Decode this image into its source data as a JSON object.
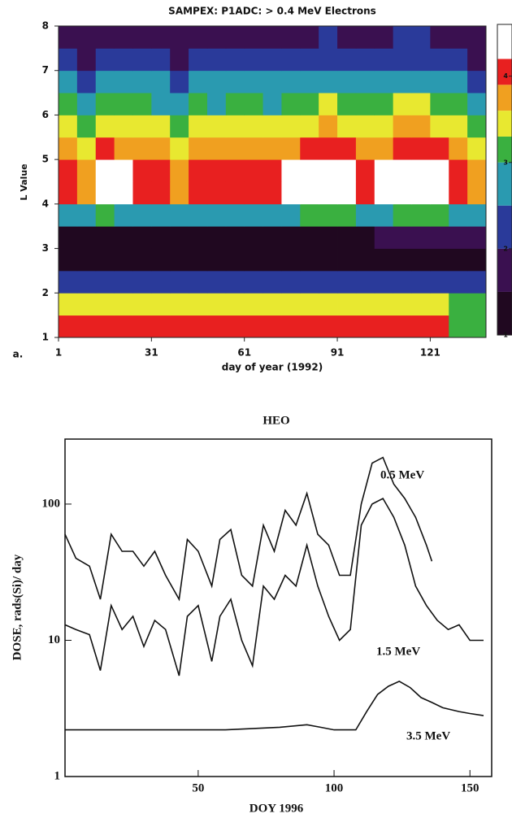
{
  "chart_data": [
    {
      "type": "heatmap",
      "title": "SAMPEX: P1ADC: > 0.4 MeV Electrons",
      "panel_label": "a.",
      "x_label": "day of year (1992)",
      "y_label": "L Value",
      "xlim": [
        1,
        139
      ],
      "ylim": [
        1,
        8
      ],
      "xticks": [
        1,
        31,
        61,
        91,
        121
      ],
      "yticks": [
        1,
        2,
        3,
        4,
        5,
        6,
        7,
        8
      ],
      "x_bins": [
        1,
        7,
        13,
        19,
        25,
        31,
        37,
        43,
        49,
        55,
        61,
        67,
        73,
        79,
        85,
        91,
        97,
        103,
        109,
        115,
        121,
        127,
        133,
        139
      ],
      "y_bins": [
        1,
        1.5,
        2,
        2.5,
        3,
        3.5,
        4,
        4.5,
        5,
        5.5,
        6,
        6.5,
        7,
        7.5,
        8
      ],
      "zlim": [
        1,
        4.6
      ],
      "zticks": [
        1,
        2,
        3,
        4
      ],
      "colorscale": [
        [
          1,
          "#200820"
        ],
        [
          1.5,
          "#3a1050"
        ],
        [
          2,
          "#2a3a9a"
        ],
        [
          2.5,
          "#2a9ab0"
        ],
        [
          3,
          "#3ab040"
        ],
        [
          3.3,
          "#e8e830"
        ],
        [
          3.6,
          "#f0a020"
        ],
        [
          3.9,
          "#e82020"
        ],
        [
          4.2,
          "#ffffff"
        ]
      ],
      "z": [
        [
          3.9,
          3.9,
          3.9,
          3.9,
          3.9,
          3.9,
          3.9,
          3.9,
          3.9,
          3.9,
          3.9,
          3.9,
          3.9,
          3.9,
          3.9,
          3.9,
          3.9,
          3.9,
          3.9,
          3.9,
          3.9,
          3.1,
          3.0
        ],
        [
          3.4,
          3.4,
          3.4,
          3.4,
          3.4,
          3.4,
          3.4,
          3.4,
          3.4,
          3.4,
          3.4,
          3.4,
          3.4,
          3.4,
          3.4,
          3.4,
          3.4,
          3.4,
          3.4,
          3.4,
          3.4,
          3.0,
          3.0
        ],
        [
          2.3,
          2.3,
          2.3,
          2.3,
          2.3,
          2.3,
          2.3,
          2.3,
          2.3,
          2.3,
          2.3,
          2.3,
          2.3,
          2.3,
          2.3,
          2.3,
          2.3,
          2.3,
          2.3,
          2.3,
          2.3,
          2.3,
          2.3
        ],
        [
          1.2,
          1.2,
          1.2,
          1.2,
          1.2,
          1.2,
          1.2,
          1.2,
          1.2,
          1.2,
          1.2,
          1.2,
          1.2,
          1.2,
          1.2,
          1.2,
          1.2,
          1.2,
          1.2,
          1.2,
          1.2,
          1.2,
          1.2
        ],
        [
          1.4,
          1.4,
          1.4,
          1.4,
          1.4,
          1.4,
          1.4,
          1.4,
          1.4,
          1.4,
          1.4,
          1.4,
          1.4,
          1.4,
          1.4,
          1.4,
          1.4,
          1.8,
          1.9,
          1.9,
          1.8,
          1.6,
          1.5
        ],
        [
          2.8,
          2.8,
          3.0,
          2.9,
          2.8,
          2.8,
          2.8,
          2.9,
          2.8,
          2.8,
          2.9,
          2.8,
          2.9,
          3.0,
          3.0,
          3.0,
          2.8,
          2.9,
          3.0,
          3.0,
          3.0,
          2.8,
          2.8
        ],
        [
          4.0,
          3.8,
          4.3,
          4.2,
          4.0,
          3.9,
          3.8,
          4.1,
          3.9,
          4.0,
          4.1,
          3.9,
          4.2,
          4.3,
          4.4,
          4.3,
          4.0,
          4.2,
          4.4,
          4.4,
          4.3,
          4.0,
          3.8
        ],
        [
          4.0,
          3.8,
          4.3,
          4.2,
          4.0,
          3.9,
          3.8,
          4.1,
          3.9,
          4.0,
          4.1,
          3.9,
          4.2,
          4.3,
          4.4,
          4.3,
          4.0,
          4.2,
          4.4,
          4.4,
          4.3,
          4.0,
          3.8
        ],
        [
          3.7,
          3.5,
          3.9,
          3.8,
          3.7,
          3.6,
          3.5,
          3.8,
          3.6,
          3.7,
          3.8,
          3.6,
          3.8,
          3.9,
          4.0,
          3.9,
          3.7,
          3.8,
          4.0,
          4.0,
          3.9,
          3.7,
          3.5
        ],
        [
          3.3,
          3.2,
          3.5,
          3.5,
          3.3,
          3.3,
          3.2,
          3.4,
          3.3,
          3.3,
          3.4,
          3.3,
          3.5,
          3.5,
          3.6,
          3.5,
          3.3,
          3.5,
          3.6,
          3.6,
          3.5,
          3.3,
          3.2
        ],
        [
          3.0,
          2.8,
          3.2,
          3.1,
          3.0,
          2.9,
          2.8,
          3.1,
          2.9,
          3.0,
          3.1,
          2.9,
          3.1,
          3.2,
          3.3,
          3.2,
          3.0,
          3.1,
          3.3,
          3.3,
          3.2,
          3.0,
          2.8
        ],
        [
          2.6,
          2.4,
          2.8,
          2.7,
          2.6,
          2.5,
          2.4,
          2.7,
          2.5,
          2.6,
          2.7,
          2.5,
          2.7,
          2.8,
          2.9,
          2.8,
          2.6,
          2.7,
          2.9,
          2.9,
          2.8,
          2.6,
          2.4
        ],
        [
          2.1,
          1.9,
          2.3,
          2.2,
          2.1,
          2.0,
          1.9,
          2.2,
          2.0,
          2.1,
          2.2,
          2.0,
          2.2,
          2.3,
          2.4,
          2.3,
          2.1,
          2.2,
          2.4,
          2.4,
          2.3,
          2.1,
          1.9
        ],
        [
          1.7,
          1.5,
          1.9,
          1.8,
          1.7,
          1.6,
          1.5,
          1.8,
          1.6,
          1.7,
          1.8,
          1.6,
          1.8,
          1.9,
          2.0,
          1.9,
          1.7,
          1.8,
          2.0,
          2.0,
          1.9,
          1.7,
          1.5
        ]
      ]
    },
    {
      "type": "line",
      "title": "HEO",
      "x_label": "DOY  1996",
      "y_label": "DOSE, rads(Si)/ day",
      "log_y": true,
      "xlim": [
        1,
        158
      ],
      "ylim": [
        1,
        300
      ],
      "xticks": [
        50,
        100,
        150
      ],
      "yticks": [
        1,
        10,
        100
      ],
      "series": [
        {
          "name": "0.5 MeV",
          "color": "#111111",
          "x": [
            1,
            5,
            10,
            14,
            18,
            22,
            26,
            30,
            34,
            38,
            43,
            46,
            50,
            55,
            58,
            62,
            66,
            70,
            74,
            78,
            82,
            86,
            90,
            94,
            98,
            102,
            106,
            110,
            114,
            118,
            122,
            126,
            130,
            134,
            136
          ],
          "values": [
            60,
            40,
            35,
            20,
            60,
            45,
            45,
            35,
            45,
            30,
            20,
            55,
            45,
            25,
            55,
            65,
            30,
            25,
            70,
            45,
            90,
            70,
            120,
            60,
            50,
            30,
            30,
            100,
            200,
            220,
            140,
            110,
            80,
            50,
            38
          ]
        },
        {
          "name": "1.5 MeV",
          "color": "#111111",
          "x": [
            1,
            5,
            10,
            14,
            18,
            22,
            26,
            30,
            34,
            38,
            43,
            46,
            50,
            55,
            58,
            62,
            66,
            70,
            74,
            78,
            82,
            86,
            90,
            94,
            98,
            102,
            106,
            110,
            114,
            118,
            122,
            126,
            130,
            134,
            138,
            142,
            146,
            150,
            155
          ],
          "values": [
            13,
            12,
            11,
            6,
            18,
            12,
            15,
            9,
            14,
            12,
            5.5,
            15,
            18,
            7,
            15,
            20,
            10,
            6.5,
            25,
            20,
            30,
            25,
            50,
            25,
            15,
            10,
            12,
            70,
            100,
            110,
            80,
            50,
            25,
            18,
            14,
            12,
            13,
            10,
            10
          ]
        },
        {
          "name": "3.5 MeV",
          "color": "#111111",
          "x": [
            1,
            20,
            40,
            60,
            80,
            90,
            95,
            100,
            108,
            112,
            116,
            120,
            124,
            128,
            132,
            136,
            140,
            146,
            150,
            155
          ],
          "values": [
            2.2,
            2.2,
            2.2,
            2.2,
            2.3,
            2.4,
            2.3,
            2.2,
            2.2,
            3.0,
            4.0,
            4.6,
            5.0,
            4.5,
            3.8,
            3.5,
            3.2,
            3.0,
            2.9,
            2.8
          ]
        }
      ]
    }
  ]
}
